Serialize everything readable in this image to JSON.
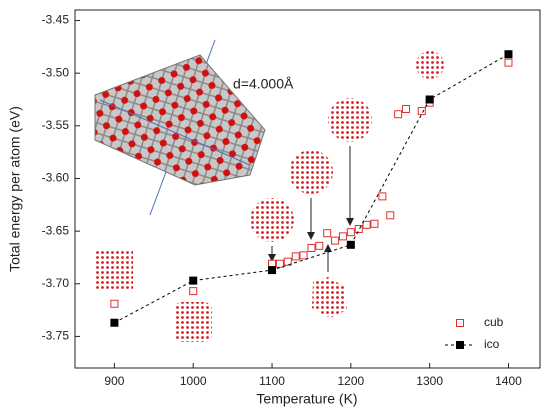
{
  "chart_data": {
    "type": "scatter",
    "x_label": "Temperature (K)",
    "y_label": "Total energy per atom (eV)",
    "annotation": "d=4.000Å",
    "xlim": [
      850,
      1440
    ],
    "ylim": [
      -3.78,
      -3.44
    ],
    "xticks": [
      900,
      1000,
      1100,
      1200,
      1300,
      1400
    ],
    "yticks": [
      -3.45,
      {
        "value": -3.5,
        "label": "-3.50"
      },
      -3.55,
      {
        "value": -3.6,
        "label": "-3.60"
      },
      -3.65,
      {
        "value": -3.7,
        "label": "-3.70"
      },
      -3.75
    ],
    "legend": "lower right",
    "series": [
      {
        "name": "cub",
        "color": "#e03030",
        "marker": "open-square",
        "linestyle": "none",
        "x": [
          900,
          1000,
          1100,
          1110,
          1120,
          1130,
          1140,
          1150,
          1160,
          1170,
          1180,
          1190,
          1200,
          1210,
          1220,
          1230,
          1240,
          1250,
          1260,
          1270,
          1290,
          1300,
          1400
        ],
        "values": [
          -3.719,
          -3.707,
          -3.681,
          -3.681,
          -3.679,
          -3.674,
          -3.673,
          -3.666,
          -3.664,
          -3.652,
          -3.659,
          -3.655,
          -3.651,
          -3.648,
          -3.644,
          -3.643,
          -3.617,
          -3.635,
          -3.539,
          -3.534,
          -3.536,
          -3.528,
          -3.49
        ]
      },
      {
        "name": "ico",
        "color": "#000000",
        "marker": "square",
        "linestyle": "dashed",
        "x": [
          900,
          1000,
          1100,
          1200,
          1300,
          1400
        ],
        "values": [
          -3.737,
          -3.697,
          -3.687,
          -3.663,
          -3.525,
          -3.482
        ]
      }
    ]
  }
}
